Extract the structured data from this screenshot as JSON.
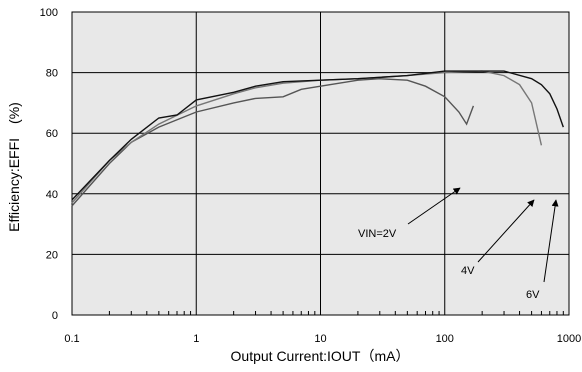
{
  "chart_data": {
    "type": "line",
    "xlabel": "Output Current:IOUT（mA）",
    "ylabel": "Efficiency:EFFI　(%)",
    "xscale": "log",
    "xlim": [
      0.1,
      1000
    ],
    "ylim": [
      0,
      100
    ],
    "grid": true,
    "x_ticks": [
      {
        "value": 0.1,
        "label": "0.1"
      },
      {
        "value": 1,
        "label": "1"
      },
      {
        "value": 10,
        "label": "10"
      },
      {
        "value": 100,
        "label": "100"
      },
      {
        "value": 1000,
        "label": "1000"
      }
    ],
    "y_ticks": [
      {
        "value": 0,
        "label": "0"
      },
      {
        "value": 20,
        "label": "20"
      },
      {
        "value": 40,
        "label": "40"
      },
      {
        "value": 60,
        "label": "60"
      },
      {
        "value": 80,
        "label": "80"
      },
      {
        "value": 100,
        "label": "100"
      }
    ],
    "series": [
      {
        "color": "#555555",
        "points": [
          [
            0.1,
            36
          ],
          [
            0.2,
            50
          ],
          [
            0.3,
            57
          ],
          [
            0.5,
            62
          ],
          [
            1,
            67
          ],
          [
            2,
            70
          ],
          [
            3,
            71.5
          ],
          [
            5,
            72
          ],
          [
            7,
            74.5
          ],
          [
            10,
            75.5
          ],
          [
            20,
            77.5
          ],
          [
            30,
            78
          ],
          [
            50,
            77.5
          ],
          [
            70,
            75.5
          ],
          [
            100,
            72
          ],
          [
            130,
            67
          ],
          [
            150,
            63
          ],
          [
            170,
            69
          ]
        ]
      },
      {
        "color": "#777777",
        "points": [
          [
            0.1,
            37
          ],
          [
            0.2,
            51
          ],
          [
            0.3,
            57
          ],
          [
            0.5,
            63
          ],
          [
            1,
            69
          ],
          [
            2,
            73
          ],
          [
            3,
            75
          ],
          [
            5,
            76.5
          ],
          [
            10,
            77.5
          ],
          [
            20,
            78
          ],
          [
            50,
            79
          ],
          [
            100,
            80
          ],
          [
            200,
            80.5
          ],
          [
            300,
            79
          ],
          [
            400,
            76
          ],
          [
            500,
            70
          ],
          [
            600,
            56
          ]
        ]
      },
      {
        "color": "#111111",
        "points": [
          [
            0.1,
            38
          ],
          [
            0.2,
            51
          ],
          [
            0.3,
            58
          ],
          [
            0.5,
            65
          ],
          [
            0.7,
            66
          ],
          [
            1,
            71
          ],
          [
            2,
            73.5
          ],
          [
            3,
            75.5
          ],
          [
            5,
            77
          ],
          [
            10,
            77.5
          ],
          [
            20,
            78
          ],
          [
            50,
            79
          ],
          [
            100,
            80.5
          ],
          [
            200,
            80.5
          ],
          [
            300,
            80.5
          ],
          [
            500,
            78
          ],
          [
            600,
            76
          ],
          [
            700,
            73
          ],
          [
            800,
            68
          ],
          [
            900,
            62
          ]
        ]
      }
    ],
    "annotations": [
      {
        "text": "VIN=2V"
      },
      {
        "text": "4V"
      },
      {
        "text": "6V"
      }
    ]
  }
}
